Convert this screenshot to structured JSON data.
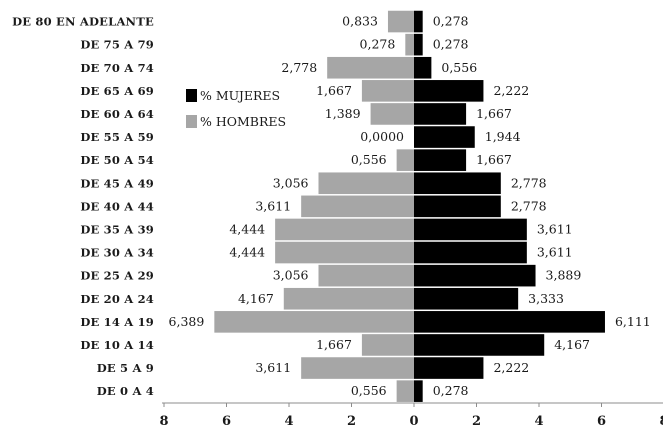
{
  "chart_data": {
    "type": "bar",
    "orientation": "horizontal",
    "layout": "population-pyramid",
    "categories": [
      "DE 80 EN ADELANTE",
      "DE 75 A 79",
      "DE 70 A 74",
      "DE 65 A 69",
      "DE 60 A 64",
      "DE 55 A 59",
      "DE 50 A 54",
      "DE 45 A 49",
      "DE 40 A 44",
      "DE 35 A 39",
      "DE 30 A 34",
      "DE 25 A 29",
      "DE 20 A 24",
      "DE 14 A 19",
      "DE 10 A 14",
      "DE 5 A 9",
      "DE 0 A 4"
    ],
    "series": [
      {
        "name": "% MUJERES",
        "side": "right",
        "color": "#000000",
        "values": [
          0.278,
          0.278,
          0.556,
          2.222,
          1.667,
          1.944,
          1.667,
          2.778,
          2.778,
          3.611,
          3.611,
          3.889,
          3.333,
          6.111,
          4.167,
          2.222,
          0.278
        ],
        "labels": [
          "0,278",
          "0,278",
          "0,556",
          "2,222",
          "1,667",
          "1,944",
          "1,667",
          "2,778",
          "2,778",
          "3,611",
          "3,611",
          "3,889",
          "3,333",
          "6,111",
          "4,167",
          "2,222",
          "0,278"
        ]
      },
      {
        "name": "% HOMBRES",
        "side": "left",
        "color": "#a6a6a6",
        "values": [
          0.833,
          0.278,
          2.778,
          1.667,
          1.389,
          0.0,
          0.556,
          3.056,
          3.611,
          4.444,
          4.444,
          3.056,
          4.167,
          6.389,
          1.667,
          3.611,
          0.556
        ],
        "labels": [
          "0,833",
          "0,278",
          "2,778",
          "1,667",
          "1,389",
          "0,0000",
          "0,556",
          "3,056",
          "3,611",
          "4,444",
          "4,444",
          "3,056",
          "4,167",
          "6,389",
          "1,667",
          "3,611",
          "0,556"
        ]
      }
    ],
    "xlim": [
      -8,
      8
    ],
    "xticks": [
      -8,
      -6,
      -4,
      -2,
      0,
      2,
      4,
      6,
      8
    ],
    "xtick_labels": [
      "8",
      "6",
      "4",
      "2",
      "0",
      "2",
      "4",
      "6",
      "8"
    ],
    "title": "",
    "xlabel": "",
    "ylabel": "",
    "grid": false,
    "legend": {
      "position": "upper-left-inside",
      "entries": [
        "% MUJERES",
        "% HOMBRES"
      ]
    }
  }
}
